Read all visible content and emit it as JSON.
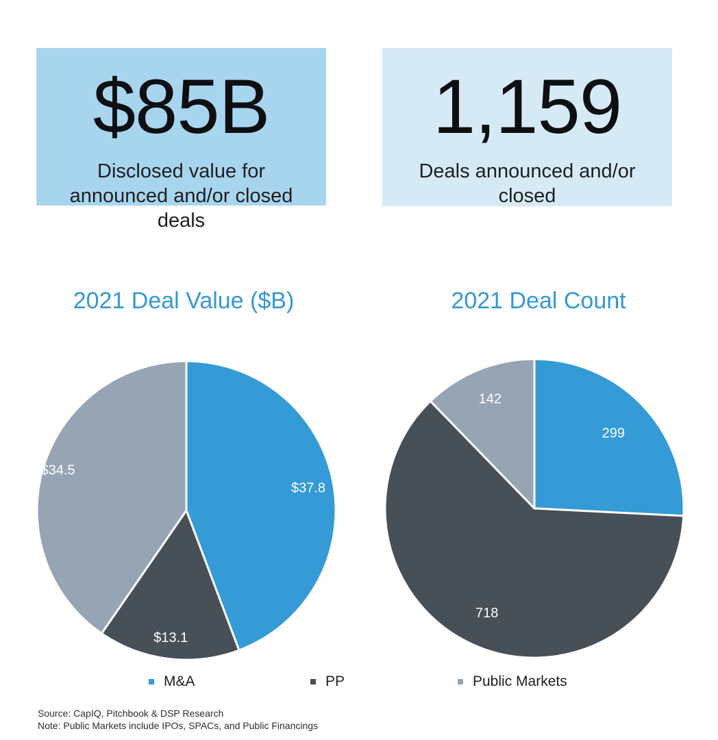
{
  "kpis": {
    "value": {
      "figure": "$85B",
      "caption": "Disclosed value for announced and/or closed deals"
    },
    "count": {
      "figure": "1,159",
      "caption": "Deals announced and/or closed"
    }
  },
  "colors": {
    "ma": "#349bd7",
    "pp": "#474f57",
    "public": "#96a4b4",
    "title": "#3499d5"
  },
  "chart_data": [
    {
      "type": "pie",
      "title": "2021 Deal Value ($B)",
      "labels": [
        "M&A",
        "PP",
        "Public Markets"
      ],
      "values": [
        37.8,
        13.1,
        34.5
      ],
      "data_labels": [
        "$37.8",
        "$13.1",
        "$34.5"
      ]
    },
    {
      "type": "pie",
      "title": "2021 Deal Count",
      "labels": [
        "M&A",
        "PP",
        "Public Markets"
      ],
      "values": [
        299,
        718,
        142
      ],
      "data_labels": [
        "299",
        "718",
        "142"
      ]
    }
  ],
  "legend": {
    "items": [
      "M&A",
      "PP",
      "Public Markets"
    ]
  },
  "footnotes": {
    "source": "Source: CapIQ, Pitchbook & DSP Research",
    "note": "Note: Public Markets include IPOs, SPACs, and Public Financings"
  }
}
